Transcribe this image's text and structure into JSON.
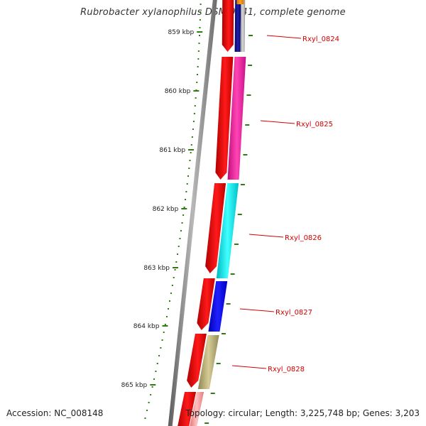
{
  "title": "Rubrobacter xylanophilus DSM 9941, complete genome",
  "accession": "Accession: NC_008148",
  "summary": "Topology: circular; Length: 3,225,748 bp; Genes: 3,203",
  "colors": {
    "backbone": "#7f7f7f",
    "scale_ticks": "#2e7d12",
    "cds_arrows": "#e00000",
    "gene_labels": "#d40000"
  },
  "scale_labels": [
    "859 kbp",
    "860 kbp",
    "861 kbp",
    "862 kbp",
    "863 kbp",
    "864 kbp",
    "865 kbp"
  ],
  "genes": [
    {
      "label": "Rxyl_0824",
      "color": "#1a1a8c"
    },
    {
      "label": "Rxyl_0825",
      "color": "#ff2aa8"
    },
    {
      "label": "Rxyl_0826",
      "color": "#00e0e0"
    },
    {
      "label": "Rxyl_0827",
      "color": "#0a0aee"
    },
    {
      "label": "Rxyl_0828",
      "color": "#bcb27a"
    }
  ]
}
